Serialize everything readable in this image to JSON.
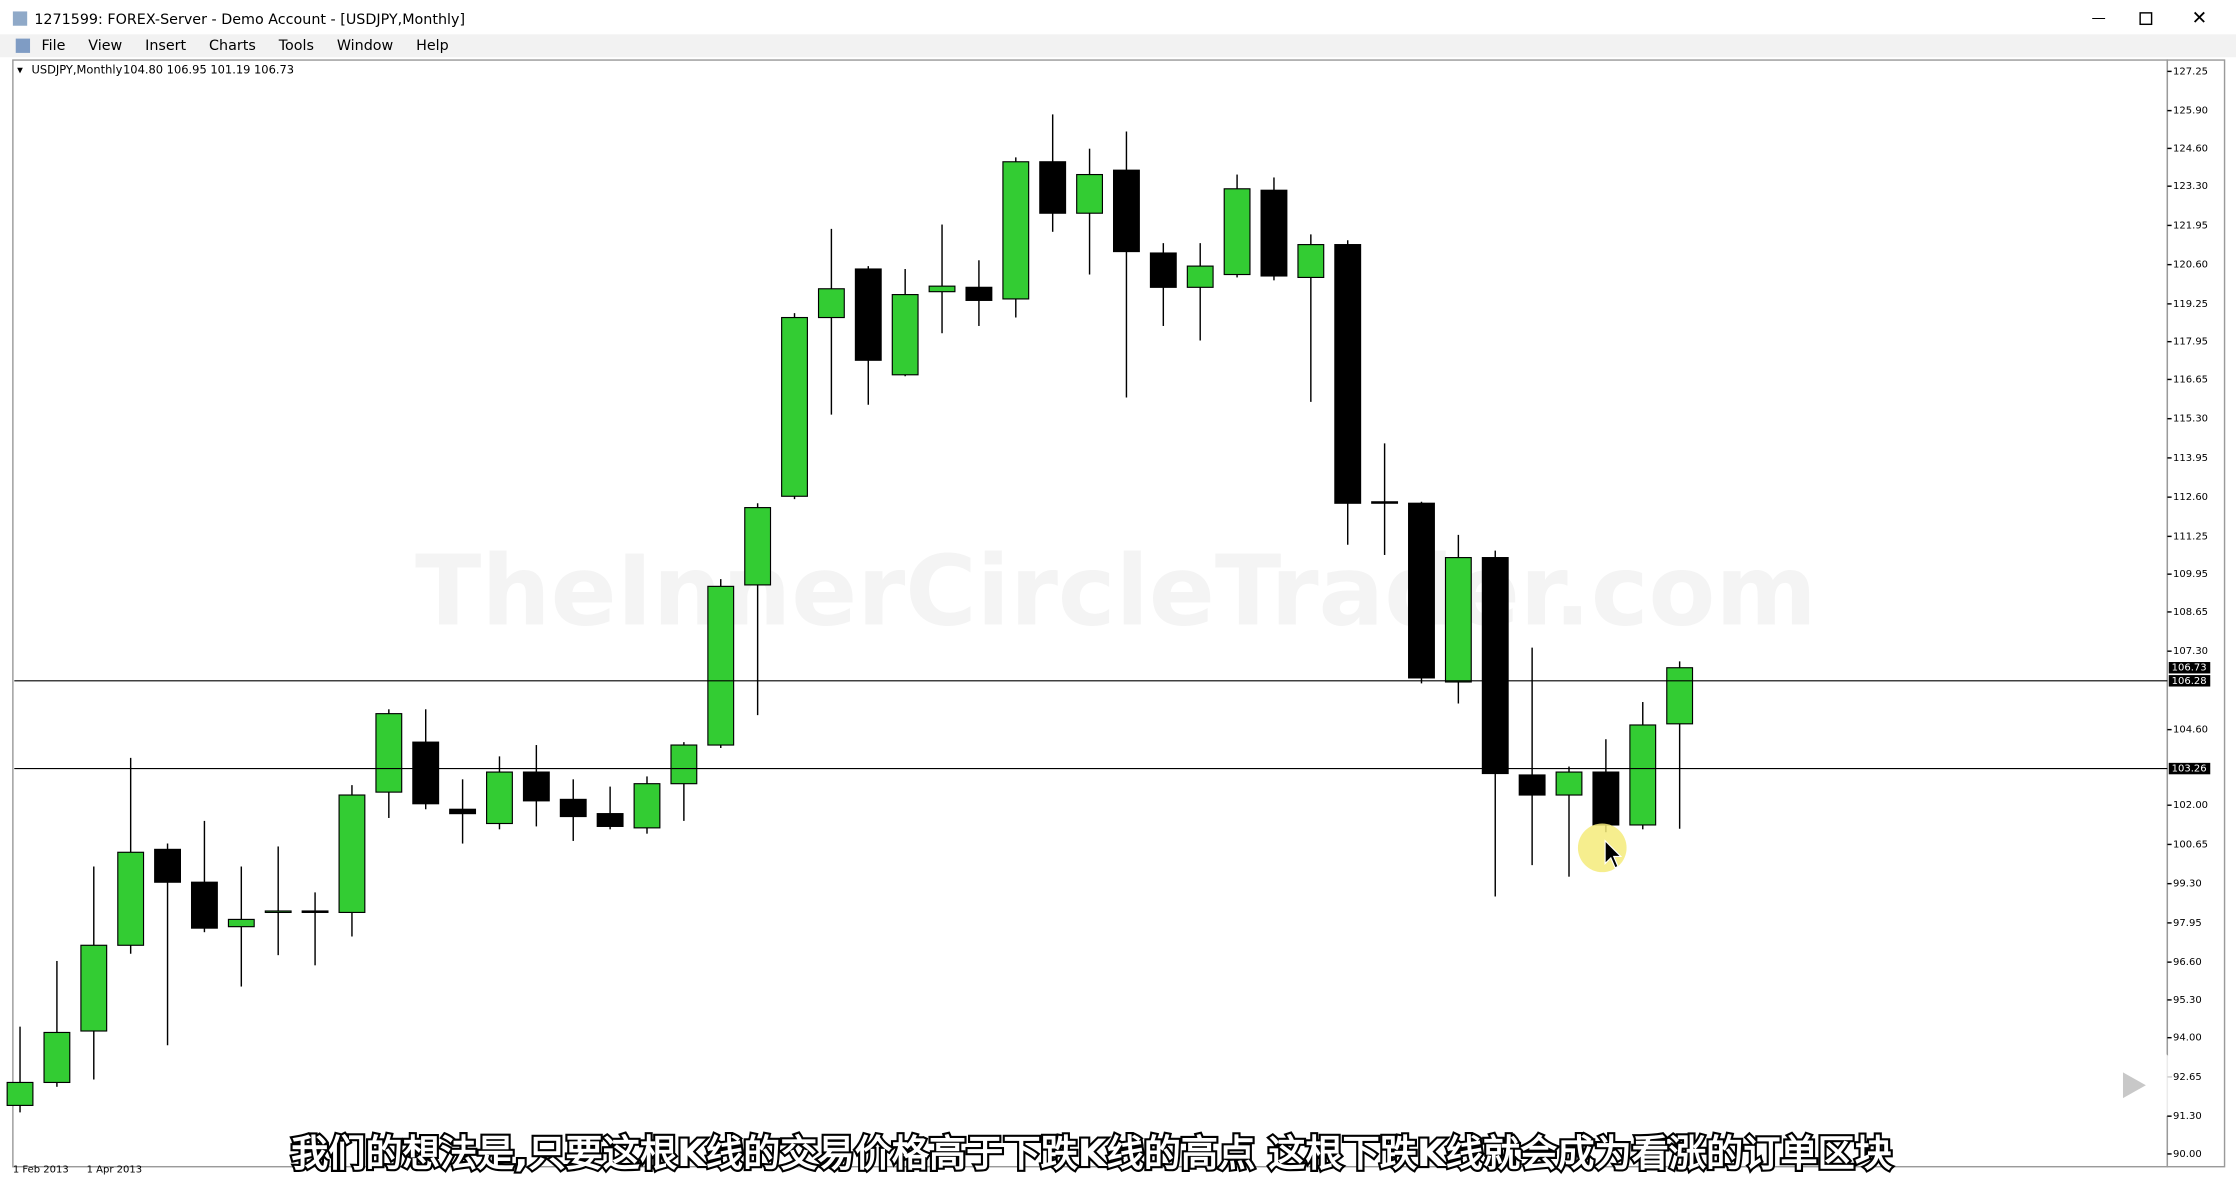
{
  "window": {
    "title": "1271599: FOREX-Server - Demo Account - [USDJPY,Monthly]",
    "menu": [
      "File",
      "View",
      "Insert",
      "Charts",
      "Tools",
      "Window",
      "Help"
    ]
  },
  "subtitle": "我们的想法是,只要这根K线的交易价格高于下跌K线的高点 这根下跌K线就会成为看涨的订单区块",
  "chart_data": {
    "type": "candlestick",
    "title": "USDJPY,Monthly",
    "info": "104.80 106.95 101.19 106.73",
    "watermark": "TheInnerCircleTrader.com",
    "categories": [
      "1 Feb 2013",
      null,
      "1 Apr 2013",
      null,
      null,
      null,
      null,
      null,
      null,
      null,
      null,
      null,
      null,
      null,
      null,
      null,
      null,
      null,
      null,
      null,
      null,
      null,
      null,
      null,
      null,
      null,
      null,
      null,
      null,
      null,
      null,
      null,
      null,
      null,
      null,
      null,
      null,
      null,
      null,
      null,
      null,
      null,
      null,
      null,
      null,
      null
    ],
    "open": [
      91.67,
      92.46,
      94.23,
      97.18,
      100.48,
      99.35,
      97.82,
      98.31,
      98.36,
      98.31,
      102.45,
      104.17,
      101.86,
      101.37,
      103.14,
      102.2,
      101.71,
      101.22,
      102.74,
      104.07,
      109.58,
      112.63,
      118.78,
      120.45,
      116.81,
      119.67,
      119.82,
      119.42,
      124.14,
      122.37,
      123.85,
      121.0,
      119.82,
      120.26,
      123.16,
      120.16,
      121.29,
      112.44,
      112.39,
      106.24,
      110.52,
      103.04,
      102.35,
      103.14,
      101.32,
      104.8
    ],
    "high": [
      94.38,
      96.64,
      99.89,
      103.63,
      100.68,
      101.46,
      99.89,
      100.58,
      99.0,
      102.69,
      105.3,
      105.3,
      102.89,
      103.68,
      104.07,
      102.89,
      102.64,
      102.99,
      104.17,
      109.78,
      112.39,
      118.93,
      121.83,
      120.55,
      120.45,
      121.98,
      120.75,
      124.29,
      125.77,
      124.59,
      125.18,
      121.34,
      121.34,
      123.7,
      123.6,
      121.64,
      121.44,
      114.45,
      112.44,
      111.3,
      110.76,
      107.42,
      103.33,
      104.27,
      105.55,
      106.95
    ],
    "low": [
      91.43,
      92.31,
      92.56,
      96.89,
      93.74,
      97.63,
      95.76,
      96.84,
      96.49,
      97.48,
      101.56,
      101.86,
      100.68,
      101.17,
      101.27,
      100.77,
      101.17,
      101.02,
      101.46,
      103.97,
      105.1,
      112.53,
      115.44,
      115.78,
      116.76,
      118.24,
      118.49,
      118.78,
      121.73,
      120.26,
      116.03,
      118.49,
      117.99,
      120.16,
      120.06,
      115.88,
      110.96,
      110.61,
      106.19,
      105.5,
      98.86,
      99.94,
      99.54,
      101.07,
      101.17,
      101.19
    ],
    "close": [
      92.46,
      94.18,
      97.18,
      100.38,
      99.35,
      97.77,
      98.07,
      98.36,
      98.34,
      102.35,
      105.15,
      102.05,
      101.71,
      103.14,
      102.15,
      101.61,
      101.27,
      102.74,
      104.07,
      109.53,
      112.24,
      118.78,
      119.77,
      117.31,
      119.57,
      119.86,
      119.37,
      124.14,
      122.37,
      123.7,
      121.05,
      119.82,
      120.55,
      123.21,
      120.21,
      121.29,
      112.39,
      112.42,
      106.38,
      110.52,
      103.09,
      102.35,
      103.14,
      101.32,
      104.76,
      106.73
    ],
    "up_color": "#33cc33",
    "down_color": "#000000",
    "ylim": [
      89.61,
      127.64
    ],
    "yticks": [
      127.25,
      {
        "value": 125.9,
        "label": "125.90"
      },
      {
        "value": 124.6,
        "label": "124.60"
      },
      {
        "value": 123.3,
        "label": "123.30"
      },
      121.95,
      {
        "value": 120.6,
        "label": "120.60"
      },
      119.25,
      117.95,
      116.65,
      {
        "value": 115.3,
        "label": "115.30"
      },
      113.95,
      {
        "value": 112.6,
        "label": "112.60"
      },
      111.25,
      109.95,
      108.65,
      {
        "value": 107.3,
        "label": "107.30"
      },
      {
        "value": 104.6,
        "label": "104.60"
      },
      {
        "value": 102,
        "label": "102.00"
      },
      100.65,
      {
        "value": 99.3,
        "label": "99.30"
      },
      97.95,
      {
        "value": 96.6,
        "label": "96.60"
      },
      {
        "value": 95.3,
        "label": "95.30"
      },
      {
        "value": 94,
        "label": "94.00"
      },
      92.65,
      {
        "value": 91.3,
        "label": "91.30"
      },
      {
        "value": 90,
        "label": "90.00"
      }
    ],
    "hlines": [
      {
        "value": 106.28,
        "label": "106.28"
      },
      {
        "value": 103.26,
        "label": "103.26"
      }
    ],
    "last_price": 106.73
  }
}
